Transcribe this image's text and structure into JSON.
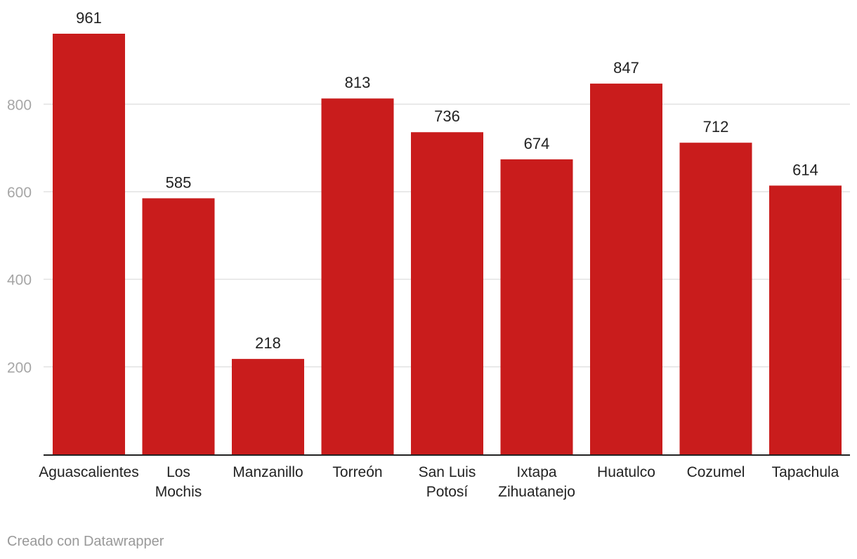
{
  "chart_data": {
    "type": "bar",
    "categories": [
      "Aguascalientes",
      "Los Mochis",
      "Manzanillo",
      "Torreón",
      "San Luis Potosí",
      "Ixtapa Zihuatanejo",
      "Huatulco",
      "Cozumel",
      "Tapachula"
    ],
    "category_lines": [
      [
        "Aguascalientes"
      ],
      [
        "Los",
        "Mochis"
      ],
      [
        "Manzanillo"
      ],
      [
        "Torreón"
      ],
      [
        "San Luis",
        "Potosí"
      ],
      [
        "Ixtapa",
        "Zihuatanejo"
      ],
      [
        "Huatulco"
      ],
      [
        "Cozumel"
      ],
      [
        "Tapachula"
      ]
    ],
    "values": [
      961,
      585,
      218,
      813,
      736,
      674,
      847,
      712,
      614
    ],
    "yticks": [
      200,
      400,
      600,
      800
    ],
    "ylim": [
      0,
      961
    ],
    "grid": true,
    "bar_color": "#c91c1c",
    "title": "",
    "xlabel": "",
    "ylabel": ""
  },
  "footer": {
    "credit": "Creado con Datawrapper"
  }
}
